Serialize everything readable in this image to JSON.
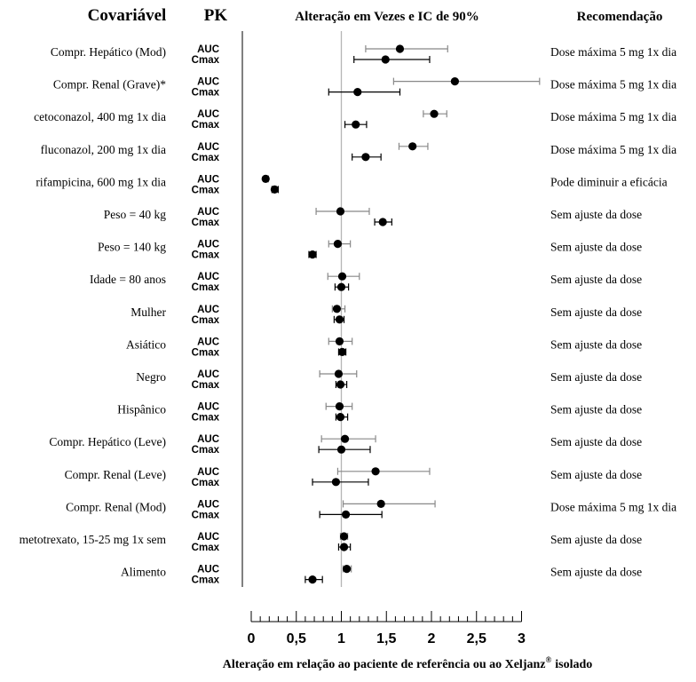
{
  "chart_data": {
    "type": "scatter",
    "subtype": "forest-plot",
    "title": "Alteração em Vezes e IC de 90%",
    "column_headers": {
      "covariate": "Covariável",
      "pk": "PK",
      "recommendation": "Recomendação"
    },
    "xlabel": "Alteração em relação ao paciente de referência ou ao Xeljanz",
    "xlabel_superscript": "®",
    "xlabel_suffix": "isolado",
    "xlim": [
      0,
      3
    ],
    "xticks": [
      "0",
      "0,5",
      "1",
      "1,5",
      "2",
      "2,5",
      "3"
    ],
    "xtick_values": [
      0,
      0.5,
      1,
      1.5,
      2,
      2.5,
      3
    ],
    "reference_line": 1,
    "rows": [
      {
        "covariate": "Compr. Hepático (Mod)",
        "recommendation": "Dose máxima 5 mg 1x dia",
        "auc": {
          "label": "AUC",
          "est": 1.65,
          "lo": 1.27,
          "hi": 2.18
        },
        "cmax": {
          "label": "Cmax",
          "est": 1.49,
          "lo": 1.14,
          "hi": 1.98
        }
      },
      {
        "covariate": "Compr. Renal (Grave)*",
        "recommendation": "Dose máxima 5 mg 1x dia",
        "auc": {
          "label": "AUC",
          "est": 2.26,
          "lo": 1.58,
          "hi": 3.2
        },
        "cmax": {
          "label": "Cmax",
          "est": 1.18,
          "lo": 0.86,
          "hi": 1.65
        }
      },
      {
        "covariate": "cetoconazol, 400 mg 1x dia",
        "recommendation": "Dose máxima 5 mg 1x dia",
        "auc": {
          "label": "AUC",
          "est": 2.03,
          "lo": 1.91,
          "hi": 2.17
        },
        "cmax": {
          "label": "Cmax",
          "est": 1.16,
          "lo": 1.04,
          "hi": 1.28
        }
      },
      {
        "covariate": "fluconazol, 200 mg 1x dia",
        "recommendation": "Dose máxima 5 mg 1x dia",
        "auc": {
          "label": "AUC",
          "est": 1.79,
          "lo": 1.64,
          "hi": 1.96
        },
        "cmax": {
          "label": "Cmax",
          "est": 1.27,
          "lo": 1.12,
          "hi": 1.44
        }
      },
      {
        "covariate": "rifampicina, 600 mg 1x dia",
        "recommendation": "Pode diminuir a eficácia",
        "auc": {
          "label": "AUC",
          "est": 0.16,
          "lo": 0.14,
          "hi": 0.19
        },
        "cmax": {
          "label": "Cmax",
          "est": 0.26,
          "lo": 0.23,
          "hi": 0.3
        }
      },
      {
        "covariate": "Peso = 40 kg",
        "recommendation": "Sem ajuste da dose",
        "auc": {
          "label": "AUC",
          "est": 0.99,
          "lo": 0.72,
          "hi": 1.31
        },
        "cmax": {
          "label": "Cmax",
          "est": 1.46,
          "lo": 1.37,
          "hi": 1.56
        }
      },
      {
        "covariate": "Peso = 140 kg",
        "recommendation": "Sem ajuste da dose",
        "auc": {
          "label": "AUC",
          "est": 0.96,
          "lo": 0.86,
          "hi": 1.1
        },
        "cmax": {
          "label": "Cmax",
          "est": 0.68,
          "lo": 0.64,
          "hi": 0.72
        }
      },
      {
        "covariate": "Idade = 80 anos",
        "recommendation": "Sem ajuste da dose",
        "auc": {
          "label": "AUC",
          "est": 1.01,
          "lo": 0.85,
          "hi": 1.2
        },
        "cmax": {
          "label": "Cmax",
          "est": 1.0,
          "lo": 0.93,
          "hi": 1.08
        }
      },
      {
        "covariate": "Mulher",
        "recommendation": "Sem ajuste da dose",
        "auc": {
          "label": "AUC",
          "est": 0.95,
          "lo": 0.9,
          "hi": 1.04
        },
        "cmax": {
          "label": "Cmax",
          "est": 0.98,
          "lo": 0.92,
          "hi": 1.03
        }
      },
      {
        "covariate": "Asiático",
        "recommendation": "Sem ajuste da dose",
        "auc": {
          "label": "AUC",
          "est": 0.98,
          "lo": 0.86,
          "hi": 1.12
        },
        "cmax": {
          "label": "Cmax",
          "est": 1.01,
          "lo": 0.97,
          "hi": 1.05
        }
      },
      {
        "covariate": "Negro",
        "recommendation": "Sem ajuste da dose",
        "auc": {
          "label": "AUC",
          "est": 0.97,
          "lo": 0.76,
          "hi": 1.17
        },
        "cmax": {
          "label": "Cmax",
          "est": 0.99,
          "lo": 0.94,
          "hi": 1.06
        }
      },
      {
        "covariate": "Hispânico",
        "recommendation": "Sem ajuste da dose",
        "auc": {
          "label": "AUC",
          "est": 0.98,
          "lo": 0.83,
          "hi": 1.12
        },
        "cmax": {
          "label": "Cmax",
          "est": 0.99,
          "lo": 0.94,
          "hi": 1.07
        }
      },
      {
        "covariate": "Compr. Hepático (Leve)",
        "recommendation": "Sem ajuste da dose",
        "auc": {
          "label": "AUC",
          "est": 1.04,
          "lo": 0.78,
          "hi": 1.38
        },
        "cmax": {
          "label": "Cmax",
          "est": 1.0,
          "lo": 0.75,
          "hi": 1.32
        }
      },
      {
        "covariate": "Compr. Renal (Leve)",
        "recommendation": "Sem ajuste da dose",
        "auc": {
          "label": "AUC",
          "est": 1.38,
          "lo": 0.96,
          "hi": 1.98
        },
        "cmax": {
          "label": "Cmax",
          "est": 0.94,
          "lo": 0.68,
          "hi": 1.3
        }
      },
      {
        "covariate": "Compr. Renal (Mod)",
        "recommendation": "Dose máxima 5 mg 1x dia",
        "auc": {
          "label": "AUC",
          "est": 1.44,
          "lo": 1.02,
          "hi": 2.04
        },
        "cmax": {
          "label": "Cmax",
          "est": 1.05,
          "lo": 0.76,
          "hi": 1.45
        }
      },
      {
        "covariate": "metotrexato, 15-25 mg 1x sem",
        "recommendation": "Sem ajuste da dose",
        "auc": {
          "label": "AUC",
          "est": 1.03,
          "lo": 0.99,
          "hi": 1.07
        },
        "cmax": {
          "label": "Cmax",
          "est": 1.03,
          "lo": 0.97,
          "hi": 1.1
        }
      },
      {
        "covariate": "Alimento",
        "recommendation": "Sem ajuste da dose",
        "auc": {
          "label": "AUC",
          "est": 1.06,
          "lo": 1.02,
          "hi": 1.11
        },
        "cmax": {
          "label": "Cmax",
          "est": 0.68,
          "lo": 0.6,
          "hi": 0.79
        }
      }
    ]
  }
}
